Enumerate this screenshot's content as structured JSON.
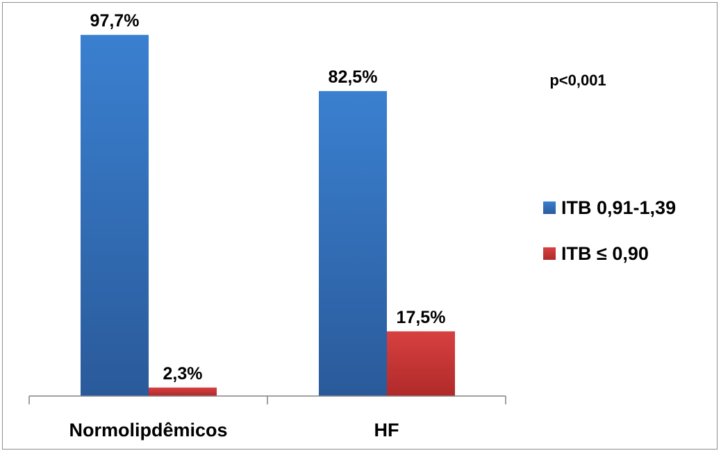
{
  "chart_data": {
    "type": "bar",
    "categories": [
      "Normolipdêmicos",
      "HF"
    ],
    "series": [
      {
        "name": "ITB 0,91-1,39",
        "values": [
          97.7,
          82.5
        ],
        "labels": [
          "97,7%",
          "82,5%"
        ],
        "color": "#3a78c4"
      },
      {
        "name": "ITB ≤ 0,90",
        "values": [
          2.3,
          17.5
        ],
        "labels": [
          "2,3%",
          "17,5%"
        ],
        "color": "#c93a3a"
      }
    ],
    "annotation": "p<0,001",
    "ylim": [
      0,
      100
    ],
    "grid": false,
    "legend": "right"
  }
}
